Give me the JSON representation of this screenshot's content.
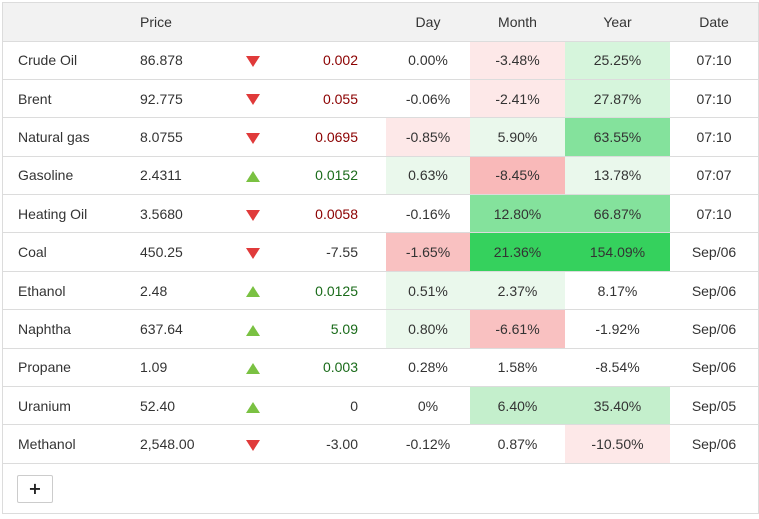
{
  "headers": {
    "name": "",
    "price": "Price",
    "arrow": "",
    "change": "",
    "day": "Day",
    "month": "Month",
    "year": "Year",
    "date": "Date"
  },
  "colors": {
    "up_arrow": "#7ac142",
    "down_arrow": "#e03a3a",
    "light_red": "#fde8e8",
    "mid_red": "#f9c1c1",
    "light_green": "#eaf8ec",
    "mid_green": "#c4efcc",
    "strong_green": "#84e29c",
    "vivid_green": "#35d15d"
  },
  "rows": [
    {
      "name": "Crude Oil",
      "price": "86.878",
      "dir": "down",
      "change": "0.002",
      "day": "0.00%",
      "month": "-3.48%",
      "year": "25.25%",
      "date": "07:10",
      "day_bg": "",
      "month_bg": "#fde8e8",
      "year_bg": "#d6f5dc"
    },
    {
      "name": "Brent",
      "price": "92.775",
      "dir": "down",
      "change": "0.055",
      "day": "-0.06%",
      "month": "-2.41%",
      "year": "27.87%",
      "date": "07:10",
      "day_bg": "",
      "month_bg": "#fde8e8",
      "year_bg": "#d6f5dc"
    },
    {
      "name": "Natural gas",
      "price": "8.0755",
      "dir": "down",
      "change": "0.0695",
      "day": "-0.85%",
      "month": "5.90%",
      "year": "63.55%",
      "date": "07:10",
      "day_bg": "#fde8e8",
      "month_bg": "#eaf8ec",
      "year_bg": "#84e29c"
    },
    {
      "name": "Gasoline",
      "price": "2.4311",
      "dir": "up",
      "change": "0.0152",
      "day": "0.63%",
      "month": "-8.45%",
      "year": "13.78%",
      "date": "07:07",
      "day_bg": "#eaf8ec",
      "month_bg": "#f9b9b9",
      "year_bg": "#eaf8ec"
    },
    {
      "name": "Heating Oil",
      "price": "3.5680",
      "dir": "down",
      "change": "0.0058",
      "day": "-0.16%",
      "month": "12.80%",
      "year": "66.87%",
      "date": "07:10",
      "day_bg": "",
      "month_bg": "#84e29c",
      "year_bg": "#84e29c"
    },
    {
      "name": "Coal",
      "price": "450.25",
      "dir": "down",
      "change": "-7.55",
      "day": "-1.65%",
      "month": "21.36%",
      "year": "154.09%",
      "date": "Sep/06",
      "day_bg": "#f9c1c1",
      "month_bg": "#35d15d",
      "year_bg": "#35d15d"
    },
    {
      "name": "Ethanol",
      "price": "2.48",
      "dir": "up",
      "change": "0.0125",
      "day": "0.51%",
      "month": "2.37%",
      "year": "8.17%",
      "date": "Sep/06",
      "day_bg": "#eaf8ec",
      "month_bg": "#eaf8ec",
      "year_bg": ""
    },
    {
      "name": "Naphtha",
      "price": "637.64",
      "dir": "up",
      "change": "5.09",
      "day": "0.80%",
      "month": "-6.61%",
      "year": "-1.92%",
      "date": "Sep/06",
      "day_bg": "#eaf8ec",
      "month_bg": "#f9c1c1",
      "year_bg": ""
    },
    {
      "name": "Propane",
      "price": "1.09",
      "dir": "up",
      "change": "0.003",
      "day": "0.28%",
      "month": "1.58%",
      "year": "-8.54%",
      "date": "Sep/06",
      "day_bg": "",
      "month_bg": "",
      "year_bg": ""
    },
    {
      "name": "Uranium",
      "price": "52.40",
      "dir": "up",
      "change": "0",
      "day": "0%",
      "month": "6.40%",
      "year": "35.40%",
      "date": "Sep/05",
      "day_bg": "",
      "month_bg": "#c4efcc",
      "year_bg": "#c4efcc"
    },
    {
      "name": "Methanol",
      "price": "2,548.00",
      "dir": "down",
      "change": "-3.00",
      "day": "-0.12%",
      "month": "0.87%",
      "year": "-10.50%",
      "date": "Sep/06",
      "day_bg": "",
      "month_bg": "",
      "year_bg": "#fde8e8"
    }
  ],
  "add_button": {
    "label": "+",
    "icon": "plus-icon"
  }
}
